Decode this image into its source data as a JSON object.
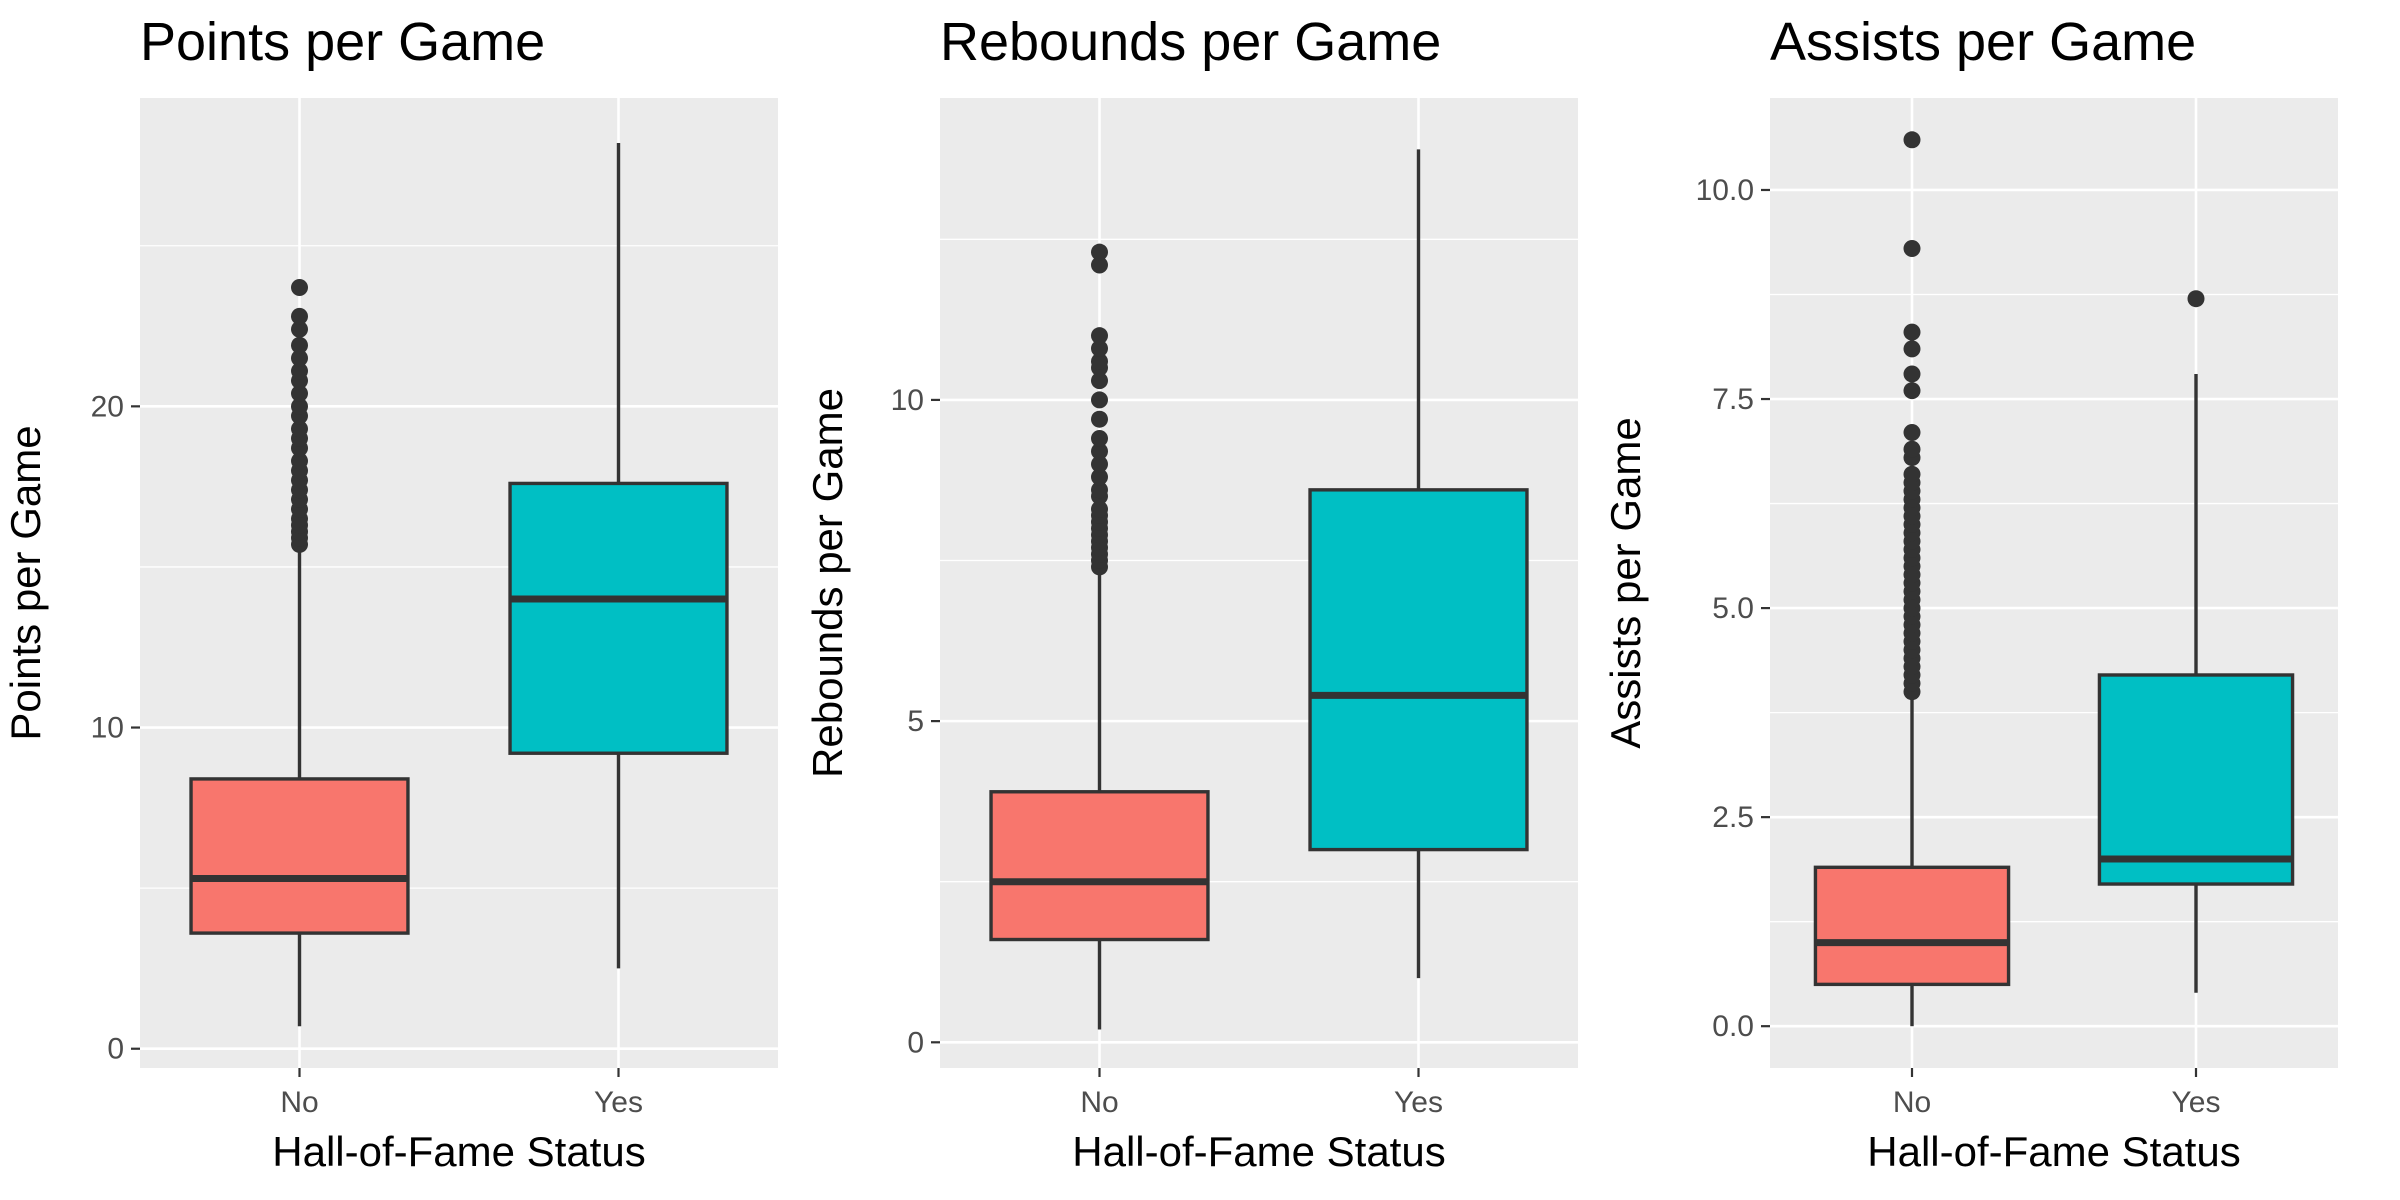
{
  "colors": {
    "No": "#F8766D",
    "Yes": "#00BFC4",
    "panel": "#EBEBEB",
    "ink": "#333333"
  },
  "chart_data": [
    {
      "type": "box",
      "title": "Points per Game",
      "xlabel": "Hall-of-Fame Status",
      "ylabel": "Points per Game",
      "categories": [
        "No",
        "Yes"
      ],
      "yticks": [
        0,
        10,
        20
      ],
      "ytick_labels": [
        "0",
        "10",
        "20"
      ],
      "ylim": [
        -0.6,
        29.6
      ],
      "grid": true,
      "legend": "none",
      "boxes": [
        {
          "name": "No",
          "whisker_low": 0.7,
          "q1": 3.6,
          "median": 5.3,
          "q3": 8.4,
          "whisker_high": 15.6,
          "outliers": [
            15.7,
            15.9,
            16.1,
            16.3,
            16.5,
            16.8,
            17.1,
            17.4,
            17.7,
            18.0,
            18.3,
            18.7,
            19.0,
            19.3,
            19.7,
            20.0,
            20.4,
            20.8,
            21.1,
            21.5,
            21.9,
            22.4,
            22.8,
            23.7
          ]
        },
        {
          "name": "Yes",
          "whisker_low": 2.5,
          "q1": 9.2,
          "median": 14.0,
          "q3": 17.6,
          "whisker_high": 28.2,
          "outliers": []
        }
      ]
    },
    {
      "type": "box",
      "title": "Rebounds per Game",
      "xlabel": "Hall-of-Fame Status",
      "ylabel": "Rebounds per Game",
      "categories": [
        "No",
        "Yes"
      ],
      "yticks": [
        0,
        5,
        10
      ],
      "ytick_labels": [
        "0",
        "5",
        "10"
      ],
      "ylim": [
        -0.4,
        14.7
      ],
      "grid": true,
      "legend": "none",
      "boxes": [
        {
          "name": "No",
          "whisker_low": 0.2,
          "q1": 1.6,
          "median": 2.5,
          "q3": 3.9,
          "whisker_high": 7.3,
          "outliers": [
            7.4,
            7.5,
            7.6,
            7.7,
            7.8,
            7.9,
            8.0,
            8.1,
            8.2,
            8.3,
            8.5,
            8.6,
            8.8,
            9.0,
            9.2,
            9.4,
            9.7,
            10.0,
            10.3,
            10.5,
            10.6,
            10.8,
            11.0,
            12.1,
            12.3
          ]
        },
        {
          "name": "Yes",
          "whisker_low": 1.0,
          "q1": 3.0,
          "median": 5.4,
          "q3": 8.6,
          "whisker_high": 13.9,
          "outliers": []
        }
      ]
    },
    {
      "type": "box",
      "title": "Assists per Game",
      "xlabel": "Hall-of-Fame Status",
      "ylabel": "Assists per Game",
      "categories": [
        "No",
        "Yes"
      ],
      "yticks": [
        0,
        2.5,
        5,
        7.5,
        10
      ],
      "ytick_labels": [
        "0.0",
        "2.5",
        "5.0",
        "7.5",
        "10.0"
      ],
      "ylim": [
        -0.5,
        11.1
      ],
      "grid": true,
      "legend": "none",
      "boxes": [
        {
          "name": "No",
          "whisker_low": 0.0,
          "q1": 0.5,
          "median": 1.0,
          "q3": 1.9,
          "whisker_high": 3.95,
          "outliers": [
            4.0,
            4.1,
            4.2,
            4.3,
            4.4,
            4.5,
            4.6,
            4.7,
            4.8,
            4.9,
            5.0,
            5.1,
            5.2,
            5.3,
            5.4,
            5.5,
            5.6,
            5.7,
            5.8,
            5.9,
            6.0,
            6.1,
            6.2,
            6.3,
            6.4,
            6.5,
            6.6,
            6.8,
            6.9,
            7.1,
            7.6,
            7.8,
            8.1,
            8.3,
            9.3,
            10.6
          ]
        },
        {
          "name": "Yes",
          "whisker_low": 0.4,
          "q1": 1.7,
          "median": 2.0,
          "q3": 4.2,
          "whisker_high": 7.8,
          "outliers": [
            8.7
          ]
        }
      ]
    }
  ]
}
